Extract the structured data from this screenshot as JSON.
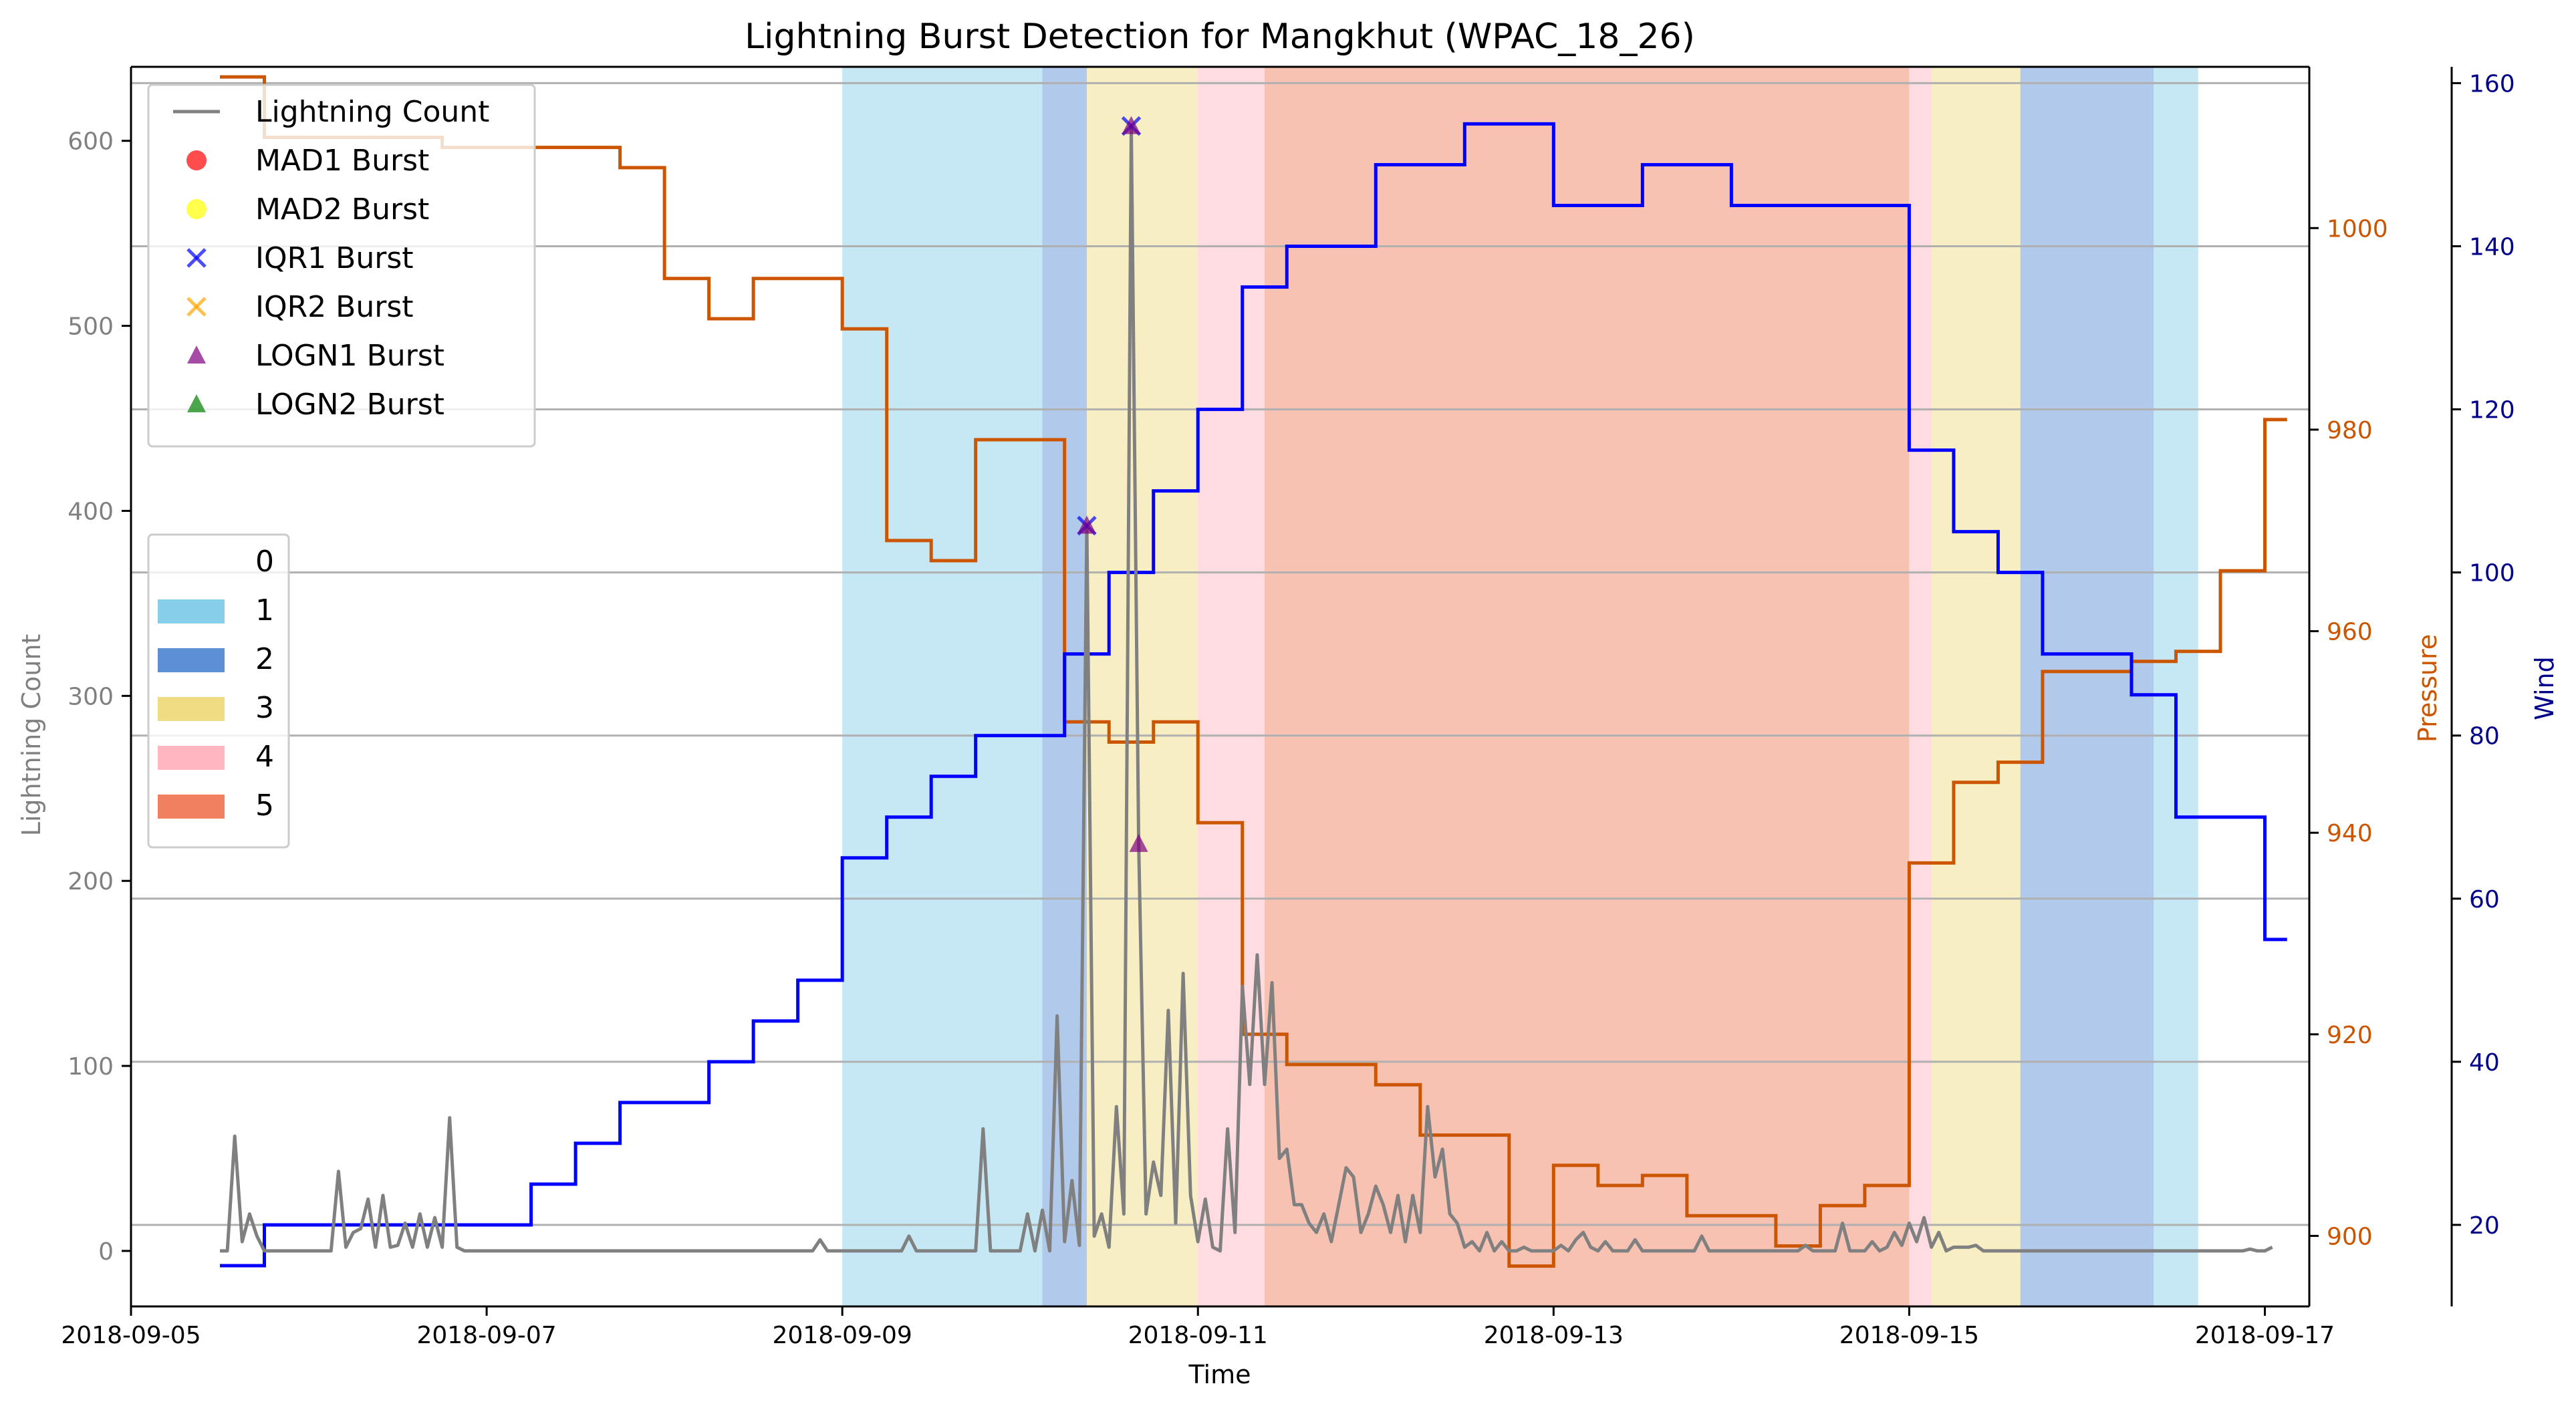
{
  "chart_data": {
    "type": "line",
    "title": "Lightning Burst Detection for Mangkhut (WPAC_18_26)",
    "xlabel": "Time",
    "ylabel_left": "Lightning Count",
    "ylabel_pressure": "Pressure",
    "ylabel_wind": "Wind",
    "xlim": [
      "2018-09-05 00:00",
      "2018-09-17 06:00"
    ],
    "ylim_left": [
      -30,
      640
    ],
    "ylim_pressure": [
      893,
      1016
    ],
    "ylim_wind": [
      10,
      162
    ],
    "x_ticks": [
      "2018-09-05",
      "2018-09-07",
      "2018-09-09",
      "2018-09-11",
      "2018-09-13",
      "2018-09-15",
      "2018-09-17"
    ],
    "y_ticks_left": [
      0,
      100,
      200,
      300,
      400,
      500,
      600
    ],
    "y_ticks_pressure": [
      900,
      920,
      940,
      960,
      980,
      1000
    ],
    "y_ticks_wind": [
      20,
      40,
      60,
      80,
      100,
      120,
      140,
      160
    ],
    "grid": "horizontal",
    "colors": {
      "lightning": "#808080",
      "pressure": "#cc5500",
      "wind": "#0000ff",
      "left_axis_text": "#808080"
    },
    "category_bands": [
      {
        "start": "2018-09-09 00:00",
        "end": "2018-09-10 03:00",
        "category": 1
      },
      {
        "start": "2018-09-10 03:00",
        "end": "2018-09-10 09:00",
        "category": 2
      },
      {
        "start": "2018-09-10 09:00",
        "end": "2018-09-11 00:00",
        "category": 3
      },
      {
        "start": "2018-09-11 00:00",
        "end": "2018-09-11 09:00",
        "category": 4
      },
      {
        "start": "2018-09-11 09:00",
        "end": "2018-09-15 00:00",
        "category": 5
      },
      {
        "start": "2018-09-15 00:00",
        "end": "2018-09-15 03:00",
        "category": 4
      },
      {
        "start": "2018-09-15 03:00",
        "end": "2018-09-15 15:00",
        "category": 3
      },
      {
        "start": "2018-09-15 15:00",
        "end": "2018-09-16 09:00",
        "category": 2
      },
      {
        "start": "2018-09-16 09:00",
        "end": "2018-09-16 15:00",
        "category": 1
      }
    ],
    "series": [
      {
        "name": "Lightning Count",
        "axis": "left",
        "points": [
          [
            "2018-09-05 12:00",
            0
          ],
          [
            "2018-09-05 13:00",
            0
          ],
          [
            "2018-09-05 14:00",
            62
          ],
          [
            "2018-09-05 15:00",
            5
          ],
          [
            "2018-09-05 16:00",
            20
          ],
          [
            "2018-09-05 17:00",
            8
          ],
          [
            "2018-09-05 18:00",
            0
          ],
          [
            "2018-09-06 03:00",
            0
          ],
          [
            "2018-09-06 04:00",
            43
          ],
          [
            "2018-09-06 05:00",
            2
          ],
          [
            "2018-09-06 06:00",
            10
          ],
          [
            "2018-09-06 07:00",
            12
          ],
          [
            "2018-09-06 08:00",
            28
          ],
          [
            "2018-09-06 09:00",
            2
          ],
          [
            "2018-09-06 10:00",
            30
          ],
          [
            "2018-09-06 11:00",
            2
          ],
          [
            "2018-09-06 12:00",
            3
          ],
          [
            "2018-09-06 13:00",
            15
          ],
          [
            "2018-09-06 14:00",
            2
          ],
          [
            "2018-09-06 15:00",
            20
          ],
          [
            "2018-09-06 16:00",
            2
          ],
          [
            "2018-09-06 17:00",
            18
          ],
          [
            "2018-09-06 18:00",
            2
          ],
          [
            "2018-09-06 19:00",
            72
          ],
          [
            "2018-09-06 20:00",
            2
          ],
          [
            "2018-09-06 21:00",
            0
          ],
          [
            "2018-09-08 20:00",
            0
          ],
          [
            "2018-09-08 21:00",
            6
          ],
          [
            "2018-09-08 22:00",
            0
          ],
          [
            "2018-09-09 08:00",
            0
          ],
          [
            "2018-09-09 09:00",
            8
          ],
          [
            "2018-09-09 10:00",
            0
          ],
          [
            "2018-09-09 18:00",
            0
          ],
          [
            "2018-09-09 19:00",
            66
          ],
          [
            "2018-09-09 20:00",
            0
          ],
          [
            "2018-09-10 00:00",
            0
          ],
          [
            "2018-09-10 01:00",
            20
          ],
          [
            "2018-09-10 02:00",
            0
          ],
          [
            "2018-09-10 03:00",
            22
          ],
          [
            "2018-09-10 04:00",
            0
          ],
          [
            "2018-09-10 05:00",
            127
          ],
          [
            "2018-09-10 06:00",
            5
          ],
          [
            "2018-09-10 07:00",
            38
          ],
          [
            "2018-09-10 08:00",
            3
          ],
          [
            "2018-09-10 09:00",
            392
          ],
          [
            "2018-09-10 10:00",
            8
          ],
          [
            "2018-09-10 11:00",
            20
          ],
          [
            "2018-09-10 12:00",
            2
          ],
          [
            "2018-09-10 13:00",
            78
          ],
          [
            "2018-09-10 14:00",
            20
          ],
          [
            "2018-09-10 15:00",
            608
          ],
          [
            "2018-09-10 16:00",
            220
          ],
          [
            "2018-09-10 17:00",
            20
          ],
          [
            "2018-09-10 18:00",
            48
          ],
          [
            "2018-09-10 19:00",
            30
          ],
          [
            "2018-09-10 20:00",
            130
          ],
          [
            "2018-09-10 21:00",
            15
          ],
          [
            "2018-09-10 22:00",
            150
          ],
          [
            "2018-09-10 23:00",
            30
          ],
          [
            "2018-09-11 00:00",
            5
          ],
          [
            "2018-09-11 01:00",
            28
          ],
          [
            "2018-09-11 02:00",
            2
          ],
          [
            "2018-09-11 03:00",
            0
          ],
          [
            "2018-09-11 04:00",
            66
          ],
          [
            "2018-09-11 05:00",
            10
          ],
          [
            "2018-09-11 06:00",
            143
          ],
          [
            "2018-09-11 07:00",
            90
          ],
          [
            "2018-09-11 08:00",
            160
          ],
          [
            "2018-09-11 09:00",
            90
          ],
          [
            "2018-09-11 10:00",
            145
          ],
          [
            "2018-09-11 11:00",
            50
          ],
          [
            "2018-09-11 12:00",
            55
          ],
          [
            "2018-09-11 13:00",
            25
          ],
          [
            "2018-09-11 14:00",
            25
          ],
          [
            "2018-09-11 15:00",
            15
          ],
          [
            "2018-09-11 16:00",
            10
          ],
          [
            "2018-09-11 17:00",
            20
          ],
          [
            "2018-09-11 18:00",
            5
          ],
          [
            "2018-09-11 19:00",
            25
          ],
          [
            "2018-09-11 20:00",
            45
          ],
          [
            "2018-09-11 21:00",
            40
          ],
          [
            "2018-09-11 22:00",
            10
          ],
          [
            "2018-09-11 23:00",
            20
          ],
          [
            "2018-09-12 00:00",
            35
          ],
          [
            "2018-09-12 01:00",
            25
          ],
          [
            "2018-09-12 02:00",
            10
          ],
          [
            "2018-09-12 03:00",
            30
          ],
          [
            "2018-09-12 04:00",
            5
          ],
          [
            "2018-09-12 05:00",
            30
          ],
          [
            "2018-09-12 06:00",
            10
          ],
          [
            "2018-09-12 07:00",
            78
          ],
          [
            "2018-09-12 08:00",
            40
          ],
          [
            "2018-09-12 09:00",
            55
          ],
          [
            "2018-09-12 10:00",
            20
          ],
          [
            "2018-09-12 11:00",
            15
          ],
          [
            "2018-09-12 12:00",
            2
          ],
          [
            "2018-09-12 13:00",
            5
          ],
          [
            "2018-09-12 14:00",
            0
          ],
          [
            "2018-09-12 15:00",
            10
          ],
          [
            "2018-09-12 16:00",
            0
          ],
          [
            "2018-09-12 17:00",
            5
          ],
          [
            "2018-09-12 18:00",
            0
          ],
          [
            "2018-09-12 19:00",
            0
          ],
          [
            "2018-09-12 20:00",
            2
          ],
          [
            "2018-09-12 21:00",
            0
          ],
          [
            "2018-09-13 00:00",
            0
          ],
          [
            "2018-09-13 01:00",
            3
          ],
          [
            "2018-09-13 02:00",
            0
          ],
          [
            "2018-09-13 03:00",
            6
          ],
          [
            "2018-09-13 04:00",
            10
          ],
          [
            "2018-09-13 05:00",
            2
          ],
          [
            "2018-09-13 06:00",
            0
          ],
          [
            "2018-09-13 07:00",
            5
          ],
          [
            "2018-09-13 08:00",
            0
          ],
          [
            "2018-09-13 10:00",
            0
          ],
          [
            "2018-09-13 11:00",
            6
          ],
          [
            "2018-09-13 12:00",
            0
          ],
          [
            "2018-09-13 19:00",
            0
          ],
          [
            "2018-09-13 20:00",
            8
          ],
          [
            "2018-09-13 21:00",
            0
          ],
          [
            "2018-09-14 09:00",
            0
          ],
          [
            "2018-09-14 10:00",
            3
          ],
          [
            "2018-09-14 11:00",
            0
          ],
          [
            "2018-09-14 14:00",
            0
          ],
          [
            "2018-09-14 15:00",
            15
          ],
          [
            "2018-09-14 16:00",
            0
          ],
          [
            "2018-09-14 18:00",
            0
          ],
          [
            "2018-09-14 19:00",
            5
          ],
          [
            "2018-09-14 20:00",
            0
          ],
          [
            "2018-09-14 21:00",
            2
          ],
          [
            "2018-09-14 22:00",
            10
          ],
          [
            "2018-09-14 23:00",
            3
          ],
          [
            "2018-09-15 00:00",
            15
          ],
          [
            "2018-09-15 01:00",
            5
          ],
          [
            "2018-09-15 02:00",
            18
          ],
          [
            "2018-09-15 03:00",
            2
          ],
          [
            "2018-09-15 04:00",
            10
          ],
          [
            "2018-09-15 05:00",
            0
          ],
          [
            "2018-09-15 06:00",
            2
          ],
          [
            "2018-09-15 08:00",
            2
          ],
          [
            "2018-09-15 09:00",
            3
          ],
          [
            "2018-09-15 10:00",
            0
          ],
          [
            "2018-09-16 21:00",
            0
          ],
          [
            "2018-09-16 22:00",
            1
          ],
          [
            "2018-09-16 23:00",
            0
          ],
          [
            "2018-09-17 00:00",
            0
          ],
          [
            "2018-09-17 01:00",
            2
          ]
        ]
      },
      {
        "name": "Pressure",
        "axis": "pressure",
        "steps": [
          [
            "2018-09-05 12:00",
            1015
          ],
          [
            "2018-09-05 18:00",
            1009
          ],
          [
            "2018-09-06 18:00",
            1008
          ],
          [
            "2018-09-07 12:00",
            1008
          ],
          [
            "2018-09-07 18:00",
            1006
          ],
          [
            "2018-09-08 00:00",
            995
          ],
          [
            "2018-09-08 06:00",
            991
          ],
          [
            "2018-09-08 12:00",
            995
          ],
          [
            "2018-09-09 00:00",
            990
          ],
          [
            "2018-09-09 06:00",
            969
          ],
          [
            "2018-09-09 12:00",
            967
          ],
          [
            "2018-09-09 18:00",
            979
          ],
          [
            "2018-09-10 06:00",
            951
          ],
          [
            "2018-09-10 12:00",
            949
          ],
          [
            "2018-09-10 18:00",
            951
          ],
          [
            "2018-09-11 00:00",
            941
          ],
          [
            "2018-09-11 06:00",
            920
          ],
          [
            "2018-09-11 12:00",
            917
          ],
          [
            "2018-09-12 00:00",
            915
          ],
          [
            "2018-09-12 06:00",
            910
          ],
          [
            "2018-09-12 12:00",
            910
          ],
          [
            "2018-09-12 18:00",
            897
          ],
          [
            "2018-09-13 00:00",
            907
          ],
          [
            "2018-09-13 06:00",
            905
          ],
          [
            "2018-09-13 12:00",
            906
          ],
          [
            "2018-09-13 18:00",
            902
          ],
          [
            "2018-09-14 06:00",
            899
          ],
          [
            "2018-09-14 12:00",
            903
          ],
          [
            "2018-09-14 18:00",
            905
          ],
          [
            "2018-09-15 00:00",
            937
          ],
          [
            "2018-09-15 06:00",
            945
          ],
          [
            "2018-09-15 12:00",
            947
          ],
          [
            "2018-09-15 18:00",
            956
          ],
          [
            "2018-09-16 06:00",
            957
          ],
          [
            "2018-09-16 12:00",
            958
          ],
          [
            "2018-09-16 18:00",
            966
          ],
          [
            "2018-09-17 00:00",
            981
          ]
        ],
        "end": "2018-09-17 03:00"
      },
      {
        "name": "Wind",
        "axis": "wind",
        "steps": [
          [
            "2018-09-05 12:00",
            15
          ],
          [
            "2018-09-05 18:00",
            20
          ],
          [
            "2018-09-07 06:00",
            25
          ],
          [
            "2018-09-07 12:00",
            30
          ],
          [
            "2018-09-07 18:00",
            35
          ],
          [
            "2018-09-08 06:00",
            40
          ],
          [
            "2018-09-08 12:00",
            45
          ],
          [
            "2018-09-08 18:00",
            50
          ],
          [
            "2018-09-09 00:00",
            65
          ],
          [
            "2018-09-09 06:00",
            70
          ],
          [
            "2018-09-09 12:00",
            75
          ],
          [
            "2018-09-09 18:00",
            80
          ],
          [
            "2018-09-10 06:00",
            90
          ],
          [
            "2018-09-10 12:00",
            100
          ],
          [
            "2018-09-10 18:00",
            110
          ],
          [
            "2018-09-11 00:00",
            120
          ],
          [
            "2018-09-11 06:00",
            135
          ],
          [
            "2018-09-11 12:00",
            140
          ],
          [
            "2018-09-12 00:00",
            150
          ],
          [
            "2018-09-12 12:00",
            155
          ],
          [
            "2018-09-13 00:00",
            145
          ],
          [
            "2018-09-13 12:00",
            150
          ],
          [
            "2018-09-14 00:00",
            145
          ],
          [
            "2018-09-15 00:00",
            115
          ],
          [
            "2018-09-15 06:00",
            105
          ],
          [
            "2018-09-15 12:00",
            100
          ],
          [
            "2018-09-15 18:00",
            90
          ],
          [
            "2018-09-16 06:00",
            85
          ],
          [
            "2018-09-16 12:00",
            70
          ],
          [
            "2018-09-17 00:00",
            55
          ]
        ],
        "end": "2018-09-17 03:00"
      }
    ],
    "burst_markers": [
      {
        "series": "IQR1 Burst",
        "x": "2018-09-10 09:00",
        "y": 392
      },
      {
        "series": "LOGN1 Burst",
        "x": "2018-09-10 09:00",
        "y": 392
      },
      {
        "series": "IQR1 Burst",
        "x": "2018-09-10 15:00",
        "y": 608
      },
      {
        "series": "LOGN1 Burst",
        "x": "2018-09-10 15:00",
        "y": 608
      },
      {
        "series": "LOGN1 Burst",
        "x": "2018-09-10 16:00",
        "y": 220
      }
    ],
    "legend_series": {
      "placement": "top-left",
      "entries": [
        {
          "label": "Lightning Count",
          "kind": "line",
          "color": "#808080"
        },
        {
          "label": "MAD1 Burst",
          "kind": "circle",
          "color": "#ff0000"
        },
        {
          "label": "MAD2 Burst",
          "kind": "circle",
          "color": "#ffff00"
        },
        {
          "label": "IQR1 Burst",
          "kind": "x",
          "color": "#0000ff"
        },
        {
          "label": "IQR2 Burst",
          "kind": "x",
          "color": "#ffa500"
        },
        {
          "label": "LOGN1 Burst",
          "kind": "triangle",
          "color": "#800080"
        },
        {
          "label": "LOGN2 Burst",
          "kind": "triangle",
          "color": "#008000"
        }
      ]
    },
    "legend_categories": {
      "placement": "center-left",
      "entries": [
        {
          "label": "0",
          "color": "#ffffff"
        },
        {
          "label": "1",
          "color": "#87ceeb"
        },
        {
          "label": "2",
          "color": "#5b8fd6"
        },
        {
          "label": "3",
          "color": "#f0dc82"
        },
        {
          "label": "4",
          "color": "#ffb6c1"
        },
        {
          "label": "5",
          "color": "#f08060"
        }
      ]
    }
  }
}
